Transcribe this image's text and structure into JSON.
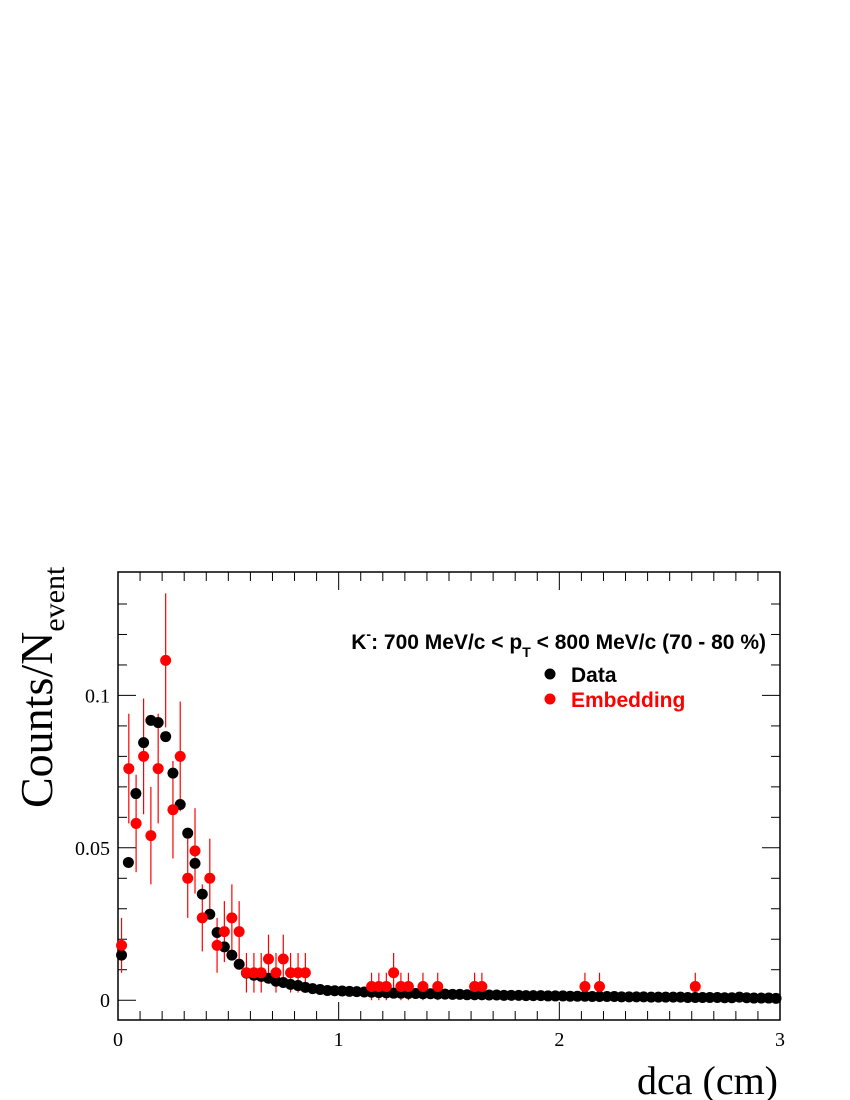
{
  "chart_data": {
    "type": "scatter",
    "title_parts": {
      "particle": "K",
      "charge": "-",
      "pre": ": 700 MeV/c < p",
      "sub": "T",
      "post": " < 800 MeV/c (70 - 80 %)"
    },
    "xlabel": "dca (cm)",
    "ylabel_main": "Counts/N",
    "ylabel_sub": "event",
    "xlim": [
      0,
      3
    ],
    "ylim": [
      -0.0065,
      0.1405
    ],
    "x_ticks": [
      0,
      1,
      2,
      3
    ],
    "x_tick_labels": [
      "0",
      "1",
      "2",
      "3"
    ],
    "y_ticks": [
      0,
      0.05,
      0.1
    ],
    "y_tick_labels": [
      "0",
      "0.05",
      "0.1"
    ],
    "legend_position": "top-right",
    "grid": false,
    "series": [
      {
        "name": "Data",
        "color": "#000000",
        "points": [
          [
            0.016,
            0.0148
          ],
          [
            0.047,
            0.0452
          ],
          [
            0.081,
            0.0678
          ],
          [
            0.116,
            0.0845
          ],
          [
            0.149,
            0.0918
          ],
          [
            0.182,
            0.0911
          ],
          [
            0.216,
            0.0865
          ],
          [
            0.249,
            0.0745
          ],
          [
            0.282,
            0.0642
          ],
          [
            0.316,
            0.0548
          ],
          [
            0.349,
            0.0449
          ],
          [
            0.382,
            0.0348
          ],
          [
            0.416,
            0.0282
          ],
          [
            0.449,
            0.0222
          ],
          [
            0.482,
            0.0175
          ],
          [
            0.516,
            0.0148
          ],
          [
            0.549,
            0.0118
          ],
          [
            0.582,
            0.0089
          ],
          [
            0.616,
            0.0082
          ],
          [
            0.649,
            0.0078
          ],
          [
            0.682,
            0.0072
          ],
          [
            0.716,
            0.0062
          ],
          [
            0.749,
            0.0058
          ],
          [
            0.782,
            0.0052
          ],
          [
            0.816,
            0.0048
          ],
          [
            0.849,
            0.0042
          ],
          [
            0.882,
            0.0038
          ],
          [
            0.916,
            0.0035
          ],
          [
            0.949,
            0.0032
          ],
          [
            0.982,
            0.0031
          ],
          [
            1.016,
            0.003
          ],
          [
            1.049,
            0.0029
          ],
          [
            1.082,
            0.0028
          ],
          [
            1.116,
            0.0027
          ],
          [
            1.149,
            0.0026
          ],
          [
            1.182,
            0.0025
          ],
          [
            1.216,
            0.0024
          ],
          [
            1.249,
            0.0023
          ],
          [
            1.282,
            0.0023
          ],
          [
            1.316,
            0.0022
          ],
          [
            1.349,
            0.0022
          ],
          [
            1.382,
            0.0021
          ],
          [
            1.416,
            0.0021
          ],
          [
            1.449,
            0.002
          ],
          [
            1.482,
            0.002
          ],
          [
            1.516,
            0.0019
          ],
          [
            1.549,
            0.0019
          ],
          [
            1.582,
            0.0018
          ],
          [
            1.616,
            0.0018
          ],
          [
            1.649,
            0.0018
          ],
          [
            1.682,
            0.0017
          ],
          [
            1.716,
            0.0017
          ],
          [
            1.749,
            0.0016
          ],
          [
            1.782,
            0.0016
          ],
          [
            1.816,
            0.0016
          ],
          [
            1.849,
            0.0015
          ],
          [
            1.882,
            0.0015
          ],
          [
            1.916,
            0.0015
          ],
          [
            1.949,
            0.0014
          ],
          [
            1.982,
            0.0014
          ],
          [
            2.016,
            0.0014
          ],
          [
            2.049,
            0.0013
          ],
          [
            2.082,
            0.0013
          ],
          [
            2.116,
            0.0013
          ],
          [
            2.149,
            0.0012
          ],
          [
            2.182,
            0.0012
          ],
          [
            2.216,
            0.0012
          ],
          [
            2.249,
            0.0012
          ],
          [
            2.282,
            0.0011
          ],
          [
            2.316,
            0.0011
          ],
          [
            2.349,
            0.0011
          ],
          [
            2.382,
            0.0011
          ],
          [
            2.416,
            0.001
          ],
          [
            2.449,
            0.001
          ],
          [
            2.482,
            0.001
          ],
          [
            2.516,
            0.001
          ],
          [
            2.549,
            0.001
          ],
          [
            2.582,
            0.0009
          ],
          [
            2.616,
            0.0009
          ],
          [
            2.649,
            0.0009
          ],
          [
            2.682,
            0.0009
          ],
          [
            2.716,
            0.0009
          ],
          [
            2.749,
            0.0008
          ],
          [
            2.782,
            0.0008
          ],
          [
            2.816,
            0.001
          ],
          [
            2.849,
            0.0008
          ],
          [
            2.882,
            0.0007
          ],
          [
            2.916,
            0.0007
          ],
          [
            2.949,
            0.0007
          ],
          [
            2.982,
            0.0006
          ]
        ]
      },
      {
        "name": "Embedding",
        "color": "#ff0000",
        "points": [
          [
            0.016,
            0.018,
            0.009
          ],
          [
            0.049,
            0.076,
            0.018
          ],
          [
            0.082,
            0.058,
            0.016
          ],
          [
            0.116,
            0.08,
            0.019
          ],
          [
            0.149,
            0.054,
            0.016
          ],
          [
            0.182,
            0.076,
            0.018
          ],
          [
            0.216,
            0.1115,
            0.022
          ],
          [
            0.249,
            0.0625,
            0.016
          ],
          [
            0.282,
            0.08,
            0.018
          ],
          [
            0.316,
            0.04,
            0.013
          ],
          [
            0.349,
            0.049,
            0.014
          ],
          [
            0.382,
            0.027,
            0.011
          ],
          [
            0.416,
            0.04,
            0.013
          ],
          [
            0.449,
            0.018,
            0.009
          ],
          [
            0.482,
            0.0225,
            0.01
          ],
          [
            0.516,
            0.027,
            0.011
          ],
          [
            0.549,
            0.0225,
            0.01
          ],
          [
            0.582,
            0.009,
            0.0065
          ],
          [
            0.616,
            0.009,
            0.0065
          ],
          [
            0.649,
            0.009,
            0.0065
          ],
          [
            0.682,
            0.0135,
            0.008
          ],
          [
            0.716,
            0.009,
            0.0065
          ],
          [
            0.749,
            0.0135,
            0.008
          ],
          [
            0.782,
            0.009,
            0.0065
          ],
          [
            0.816,
            0.009,
            0.0065
          ],
          [
            0.849,
            0.009,
            0.0065
          ],
          [
            1.149,
            0.0045,
            0.0045
          ],
          [
            1.182,
            0.0045,
            0.0045
          ],
          [
            1.216,
            0.0045,
            0.0045
          ],
          [
            1.249,
            0.009,
            0.0065
          ],
          [
            1.282,
            0.0045,
            0.0045
          ],
          [
            1.316,
            0.0045,
            0.0045
          ],
          [
            1.382,
            0.0045,
            0.0045
          ],
          [
            1.449,
            0.0045,
            0.0045
          ],
          [
            1.616,
            0.0045,
            0.0045
          ],
          [
            1.649,
            0.0045,
            0.0045
          ],
          [
            2.116,
            0.0045,
            0.0045
          ],
          [
            2.182,
            0.0045,
            0.0045
          ],
          [
            2.616,
            0.0045,
            0.0045
          ]
        ]
      }
    ]
  }
}
